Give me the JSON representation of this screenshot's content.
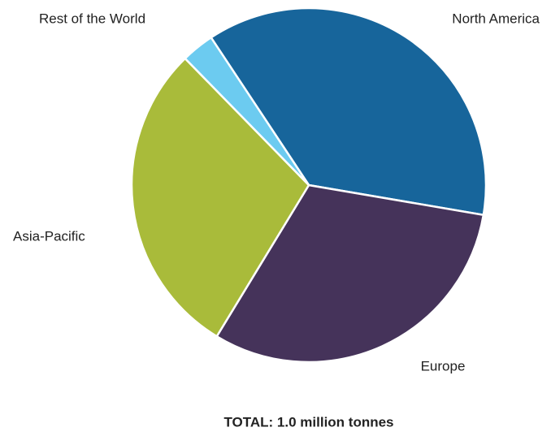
{
  "chart_data": {
    "type": "pie",
    "title": "TOTAL: 1.0 million tonnes",
    "categories": [
      "North America",
      "Europe",
      "Asia-Pacific",
      "Rest of the World"
    ],
    "values": [
      37,
      31,
      29,
      3
    ],
    "colors": [
      "#17659b",
      "#45335a",
      "#a9bb3a",
      "#6ccbf0"
    ]
  }
}
